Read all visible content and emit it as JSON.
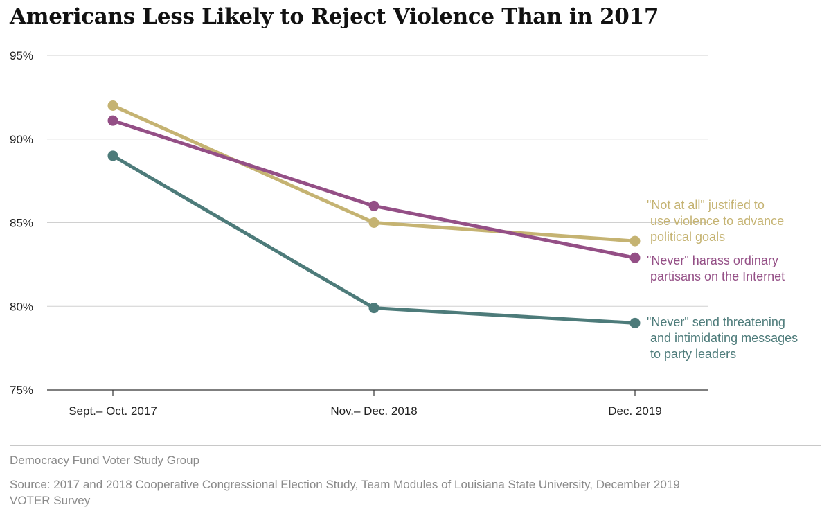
{
  "title": "Americans Less Likely to Reject Violence Than in 2017",
  "chart_data": {
    "type": "line",
    "categories": [
      "Sept.– Oct. 2017",
      "Nov.– Dec. 2018",
      "Dec. 2019"
    ],
    "ylim": [
      75,
      95
    ],
    "yticks": [
      75,
      80,
      85,
      90,
      95
    ],
    "ytick_labels": [
      "75%",
      "80%",
      "85%",
      "90%",
      "95%"
    ],
    "grid": true,
    "legend_placement": "inline-right",
    "series": [
      {
        "name": "\"Not at all\" justified to use violence to advance political goals",
        "label_lines": [
          "\"Not at all\" justified to",
          " use violence to advance",
          " political goals"
        ],
        "color": "#c5b372",
        "values": [
          92,
          85,
          83.9
        ]
      },
      {
        "name": "\"Never\" harass ordinary partisans on the Internet",
        "label_lines": [
          "\"Never\" harass ordinary",
          " partisans on the Internet"
        ],
        "color": "#944f86",
        "values": [
          91.1,
          86,
          82.9
        ]
      },
      {
        "name": "\"Never\" send threatening and intimidating messages to party leaders",
        "label_lines": [
          "\"Never\" send threatening",
          " and intimidating messages",
          " to party leaders"
        ],
        "color": "#4d7b7a",
        "values": [
          89,
          79.9,
          79
        ]
      }
    ]
  },
  "footer": {
    "org": "Democracy Fund Voter Study Group",
    "source": "Source: 2017 and 2018 Cooperative Congressional Election Study, Team Modules of Louisiana State University, December 2019 VOTER Survey"
  }
}
